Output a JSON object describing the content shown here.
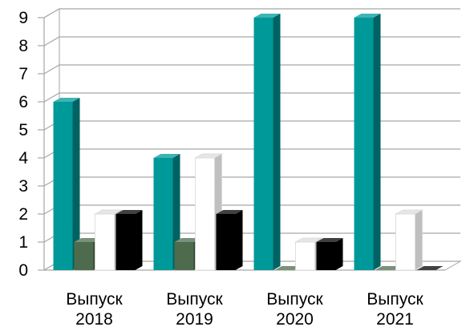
{
  "chart_data": {
    "type": "bar",
    "title": "",
    "xlabel": "",
    "ylabel": "",
    "ylim": [
      0,
      9
    ],
    "yticks": [
      0,
      1,
      2,
      3,
      4,
      5,
      6,
      7,
      8,
      9
    ],
    "grid": true,
    "legend": "none",
    "categories": [
      {
        "line1": "Выпуск",
        "line2": "2018"
      },
      {
        "line1": "Выпуск",
        "line2": "2019"
      },
      {
        "line1": "Выпуск",
        "line2": "2020"
      },
      {
        "line1": "Выпуск",
        "line2": "2021"
      }
    ],
    "series": [
      {
        "values": [
          6,
          4,
          9,
          9
        ],
        "color": "#009999"
      },
      {
        "values": [
          1,
          1,
          0,
          0
        ],
        "color": "#4E6B4E"
      },
      {
        "values": [
          2,
          4,
          1,
          2
        ],
        "color": "#FFFFFF"
      },
      {
        "values": [
          2,
          2,
          1,
          0
        ],
        "color": "#000000"
      }
    ]
  }
}
